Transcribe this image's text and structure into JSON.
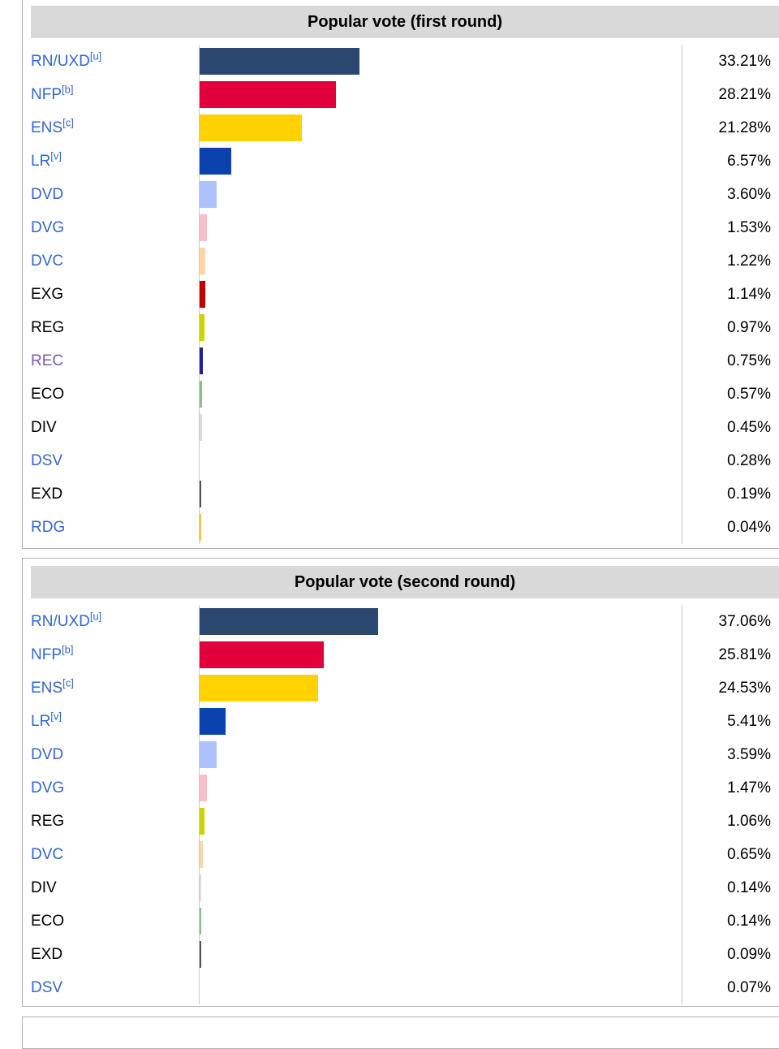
{
  "colors": {
    "link": "#3366CC",
    "visited": "#795CB2",
    "plain": "#000000",
    "header_bg": "#D9D9D9",
    "box_border": "#B0B0B0",
    "axis_line": "#C9C9C9"
  },
  "chart_data": [
    {
      "type": "bar",
      "title": "Popular vote (first round)",
      "unit": "%",
      "xlim": [
        0,
        100
      ],
      "grid": false,
      "rows": [
        {
          "label": "RN/UXD",
          "sup": "[u]",
          "value": 33.21,
          "value_label": "33.21%",
          "color": "#2C4870",
          "label_style": "link"
        },
        {
          "label": "NFP",
          "sup": "[b]",
          "value": 28.21,
          "value_label": "28.21%",
          "color": "#E2003C",
          "label_style": "link"
        },
        {
          "label": "ENS",
          "sup": "[c]",
          "value": 21.28,
          "value_label": "21.28%",
          "color": "#FFD200",
          "label_style": "link"
        },
        {
          "label": "LR",
          "sup": "[v]",
          "value": 6.57,
          "value_label": "6.57%",
          "color": "#0A43AE",
          "label_style": "link"
        },
        {
          "label": "DVD",
          "sup": "",
          "value": 3.6,
          "value_label": "3.60%",
          "color": "#ADC1FD",
          "label_style": "link"
        },
        {
          "label": "DVG",
          "sup": "",
          "value": 1.53,
          "value_label": "1.53%",
          "color": "#FABFC4",
          "label_style": "link"
        },
        {
          "label": "DVC",
          "sup": "",
          "value": 1.22,
          "value_label": "1.22%",
          "color": "#FAD6A4",
          "label_style": "link"
        },
        {
          "label": "EXG",
          "sup": "",
          "value": 1.14,
          "value_label": "1.14%",
          "color": "#BB0000",
          "label_style": "plain"
        },
        {
          "label": "REG",
          "sup": "",
          "value": 0.97,
          "value_label": "0.97%",
          "color": "#CDD500",
          "label_style": "plain"
        },
        {
          "label": "REC",
          "sup": "",
          "value": 0.75,
          "value_label": "0.75%",
          "color": "#23238C",
          "label_style": "visited"
        },
        {
          "label": "ECO",
          "sup": "",
          "value": 0.57,
          "value_label": "0.57%",
          "color": "#8CBE8C",
          "label_style": "plain"
        },
        {
          "label": "DIV",
          "sup": "",
          "value": 0.45,
          "value_label": "0.45%",
          "color": "#DCDCDC",
          "label_style": "plain"
        },
        {
          "label": "DSV",
          "sup": "",
          "value": 0.28,
          "value_label": "0.28%",
          "color": "#FFFFFF",
          "label_style": "link"
        },
        {
          "label": "EXD",
          "sup": "",
          "value": 0.19,
          "value_label": "0.19%",
          "color": "#555555",
          "label_style": "plain"
        },
        {
          "label": "RDG",
          "sup": "",
          "value": 0.04,
          "value_label": "0.04%",
          "color": "#F2C843",
          "label_style": "link"
        }
      ]
    },
    {
      "type": "bar",
      "title": "Popular vote (second round)",
      "unit": "%",
      "xlim": [
        0,
        100
      ],
      "grid": false,
      "rows": [
        {
          "label": "RN/UXD",
          "sup": "[u]",
          "value": 37.06,
          "value_label": "37.06%",
          "color": "#2C4870",
          "label_style": "link"
        },
        {
          "label": "NFP",
          "sup": "[b]",
          "value": 25.81,
          "value_label": "25.81%",
          "color": "#E2003C",
          "label_style": "link"
        },
        {
          "label": "ENS",
          "sup": "[c]",
          "value": 24.53,
          "value_label": "24.53%",
          "color": "#FFD200",
          "label_style": "link"
        },
        {
          "label": "LR",
          "sup": "[v]",
          "value": 5.41,
          "value_label": "5.41%",
          "color": "#0A43AE",
          "label_style": "link"
        },
        {
          "label": "DVD",
          "sup": "",
          "value": 3.59,
          "value_label": "3.59%",
          "color": "#ADC1FD",
          "label_style": "link"
        },
        {
          "label": "DVG",
          "sup": "",
          "value": 1.47,
          "value_label": "1.47%",
          "color": "#FABFC4",
          "label_style": "link"
        },
        {
          "label": "REG",
          "sup": "",
          "value": 1.06,
          "value_label": "1.06%",
          "color": "#CDD500",
          "label_style": "plain"
        },
        {
          "label": "DVC",
          "sup": "",
          "value": 0.65,
          "value_label": "0.65%",
          "color": "#FAD6A4",
          "label_style": "link"
        },
        {
          "label": "DIV",
          "sup": "",
          "value": 0.14,
          "value_label": "0.14%",
          "color": "#DCDCDC",
          "label_style": "plain"
        },
        {
          "label": "ECO",
          "sup": "",
          "value": 0.14,
          "value_label": "0.14%",
          "color": "#8CBE8C",
          "label_style": "plain"
        },
        {
          "label": "EXD",
          "sup": "",
          "value": 0.09,
          "value_label": "0.09%",
          "color": "#555555",
          "label_style": "plain"
        },
        {
          "label": "DSV",
          "sup": "",
          "value": 0.07,
          "value_label": "0.07%",
          "color": "#FFFFFF",
          "label_style": "link"
        }
      ]
    }
  ]
}
